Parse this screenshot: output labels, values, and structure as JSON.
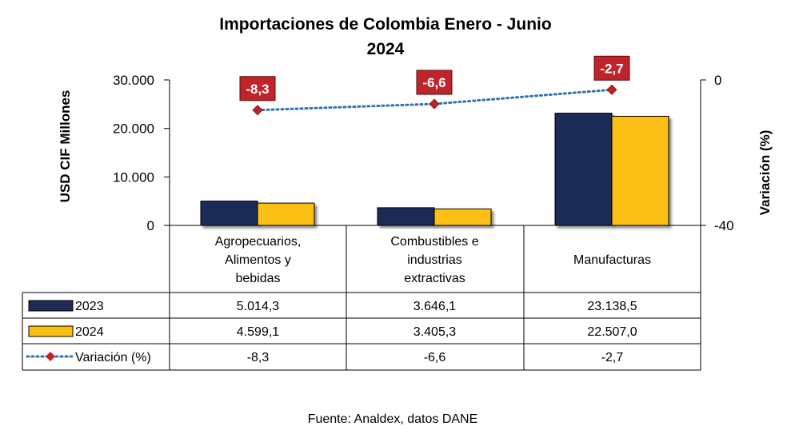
{
  "chart_data": {
    "type": "bar",
    "title_line1": "Importaciones de Colombia Enero - Junio",
    "title_line2": "2024",
    "ylabel": "USD CIF Millones",
    "y2label": "Variación (%)",
    "ylim": [
      0,
      30000
    ],
    "y_ticks": [
      "30.000",
      "20.000",
      "10.000",
      "0"
    ],
    "y_tick_values": [
      30000,
      20000,
      10000,
      0
    ],
    "y2lim": [
      -40,
      0
    ],
    "y2_ticks": [
      "0",
      "-40"
    ],
    "y2_tick_values": [
      0,
      -40
    ],
    "categories": [
      [
        "Agropecuarios,",
        "Alimentos y",
        "bebidas"
      ],
      [
        "Combustibles e",
        "industrias",
        "extractivas"
      ],
      [
        "Manufacturas"
      ]
    ],
    "series": [
      {
        "name": "2023",
        "type": "bar",
        "color": "#1f2a56",
        "values": [
          5014.3,
          3646.1,
          23138.5
        ],
        "labels": [
          "5.014,3",
          "3.646,1",
          "23.138,5"
        ]
      },
      {
        "name": "2024",
        "type": "bar",
        "color": "#fbbf13",
        "values": [
          4599.1,
          3405.3,
          22507.0
        ],
        "labels": [
          "4.599,1",
          "3.405,3",
          "22.507,0"
        ]
      },
      {
        "name": "Variación (%)",
        "type": "line",
        "axis": "secondary",
        "line_color": "#2e75b6",
        "marker_color": "#c0242b",
        "values": [
          -8.3,
          -6.6,
          -2.7
        ],
        "labels": [
          "-8,3",
          "-6,6",
          "-2,7"
        ]
      }
    ],
    "source": "Fuente: Analdex, datos DANE"
  }
}
